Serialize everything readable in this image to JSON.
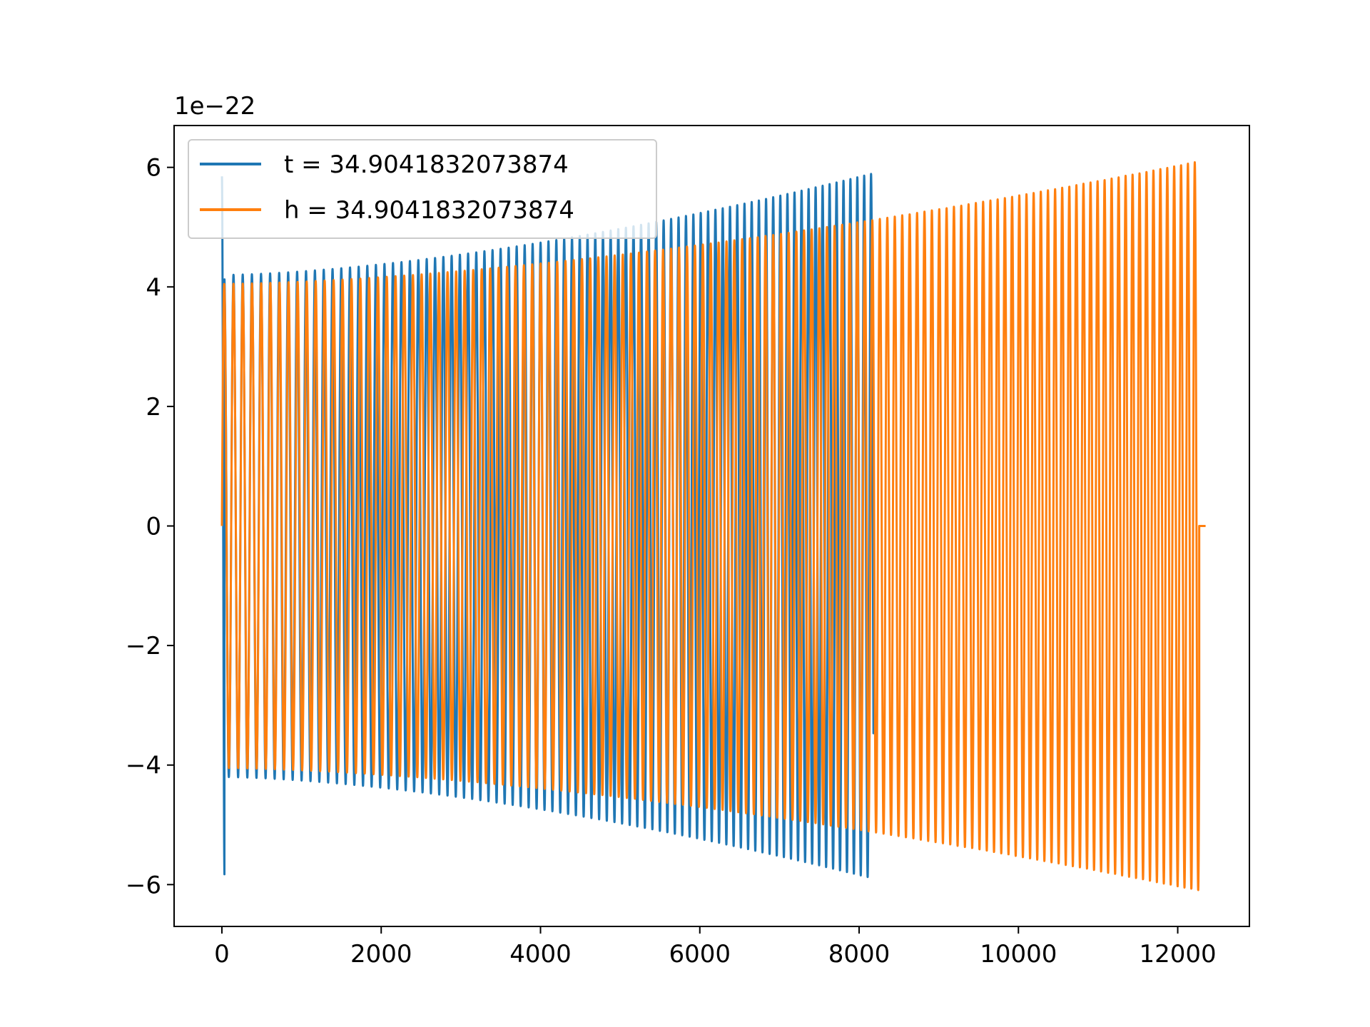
{
  "chart_data": {
    "type": "line",
    "title": "",
    "xlabel": "",
    "ylabel": "",
    "offset_label": "1e−22",
    "xlim": [
      -600,
      12900
    ],
    "ylim": [
      -6.7,
      6.7
    ],
    "x_ticks": [
      0,
      2000,
      4000,
      6000,
      8000,
      10000,
      12000
    ],
    "x_tick_labels": [
      "0",
      "2000",
      "4000",
      "6000",
      "8000",
      "10000",
      "12000"
    ],
    "y_ticks": [
      -6,
      -4,
      -2,
      0,
      2,
      4,
      6
    ],
    "y_tick_labels": [
      "−6",
      "−4",
      "−2",
      "0",
      "2",
      "4",
      "6"
    ],
    "legend_position": "upper-left",
    "grid": false,
    "series": [
      {
        "name": "t = 34.9041832073874",
        "color": "#1f77b4",
        "x_start": 0,
        "x_end": 8180,
        "start_amplitude": 4.2,
        "end_amplitude": 5.9,
        "initial_spike": 5.85,
        "cycles": 70
      },
      {
        "name": "h = 34.9041832073874",
        "color": "#ff7f0e",
        "x_start": 0,
        "x_end": 12270,
        "start_amplitude": 4.05,
        "end_amplitude": 6.1,
        "cycles": 105
      }
    ]
  }
}
